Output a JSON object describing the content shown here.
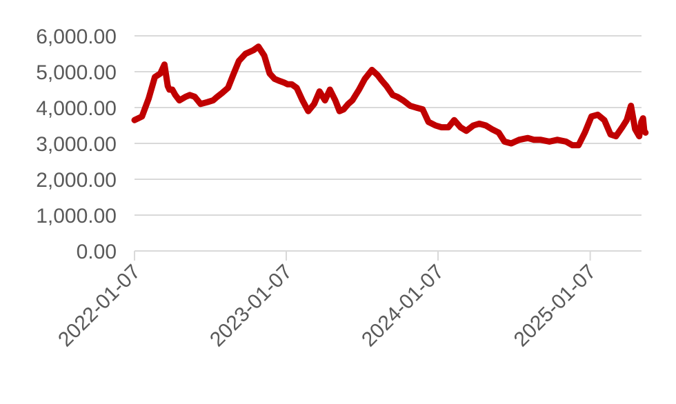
{
  "chart_data": {
    "type": "line",
    "title": "",
    "xlabel": "",
    "ylabel": "",
    "ylim": [
      0,
      6000
    ],
    "y_ticks": [
      "0.00",
      "1,000.00",
      "2,000.00",
      "3,000.00",
      "4,000.00",
      "5,000.00",
      "6,000.00"
    ],
    "x_ticks": [
      "2022-01-07",
      "2023-01-07",
      "2024-01-07",
      "2025-01-07"
    ],
    "x_range": [
      "2022-01-07",
      "2025-05-20"
    ],
    "grid": "horizontal",
    "legend": "none",
    "colors": {
      "line": "#c00000",
      "grid": "#d9d9d9",
      "text": "#595959"
    },
    "series": [
      {
        "x": [
          "2022-01-07",
          "2022-01-25",
          "2022-02-10",
          "2022-02-25",
          "2022-03-10",
          "2022-03-20",
          "2022-03-28",
          "2022-04-01",
          "2022-04-08",
          "2022-04-15",
          "2022-04-25",
          "2022-05-10",
          "2022-05-20",
          "2022-06-01",
          "2022-06-15",
          "2022-07-01",
          "2022-07-15",
          "2022-07-25",
          "2022-08-05",
          "2022-08-20",
          "2022-09-01",
          "2022-09-15",
          "2022-10-01",
          "2022-10-20",
          "2022-11-01",
          "2022-11-15",
          "2022-11-28",
          "2022-12-10",
          "2022-12-20",
          "2023-01-01",
          "2023-01-10",
          "2023-01-20",
          "2023-02-01",
          "2023-02-15",
          "2023-03-01",
          "2023-03-15",
          "2023-03-28",
          "2023-04-10",
          "2023-04-22",
          "2023-05-05",
          "2023-05-15",
          "2023-05-25",
          "2023-06-05",
          "2023-06-15",
          "2023-07-01",
          "2023-07-15",
          "2023-08-01",
          "2023-08-15",
          "2023-08-25",
          "2023-09-05",
          "2023-09-20",
          "2023-10-01",
          "2023-10-15",
          "2023-11-01",
          "2023-11-15",
          "2023-12-01",
          "2023-12-15",
          "2024-01-01",
          "2024-01-15",
          "2024-02-01",
          "2024-02-15",
          "2024-03-01",
          "2024-03-15",
          "2024-04-01",
          "2024-04-15",
          "2024-05-01",
          "2024-05-15",
          "2024-06-01",
          "2024-06-15",
          "2024-07-01",
          "2024-07-20",
          "2024-08-10",
          "2024-08-25",
          "2024-09-10",
          "2024-10-01",
          "2024-10-20",
          "2024-11-10",
          "2024-11-25",
          "2024-12-10",
          "2024-12-25",
          "2025-01-10",
          "2025-01-25",
          "2025-02-10",
          "2025-02-25",
          "2025-03-10",
          "2025-03-25",
          "2025-04-05",
          "2025-04-15",
          "2025-04-25",
          "2025-05-05",
          "2025-05-10",
          "2025-05-14",
          "2025-05-17",
          "2025-05-20"
        ],
        "values": [
          3650,
          3750,
          4250,
          4850,
          4950,
          5200,
          4600,
          4500,
          4500,
          4350,
          4200,
          4300,
          4350,
          4300,
          4100,
          4150,
          4200,
          4300,
          4400,
          4550,
          4900,
          5300,
          5500,
          5600,
          5700,
          5450,
          4950,
          4800,
          4750,
          4700,
          4650,
          4650,
          4550,
          4200,
          3900,
          4100,
          4450,
          4200,
          4500,
          4200,
          3900,
          3950,
          4100,
          4200,
          4500,
          4800,
          5050,
          4900,
          4750,
          4600,
          4350,
          4300,
          4200,
          4050,
          4000,
          3950,
          3600,
          3500,
          3450,
          3450,
          3650,
          3450,
          3350,
          3500,
          3550,
          3500,
          3400,
          3300,
          3050,
          3000,
          3100,
          3150,
          3100,
          3100,
          3050,
          3100,
          3050,
          2950,
          2950,
          3300,
          3750,
          3800,
          3650,
          3250,
          3200,
          3450,
          3650,
          4050,
          3400,
          3200,
          3600,
          3700,
          3350,
          3300
        ]
      }
    ]
  }
}
